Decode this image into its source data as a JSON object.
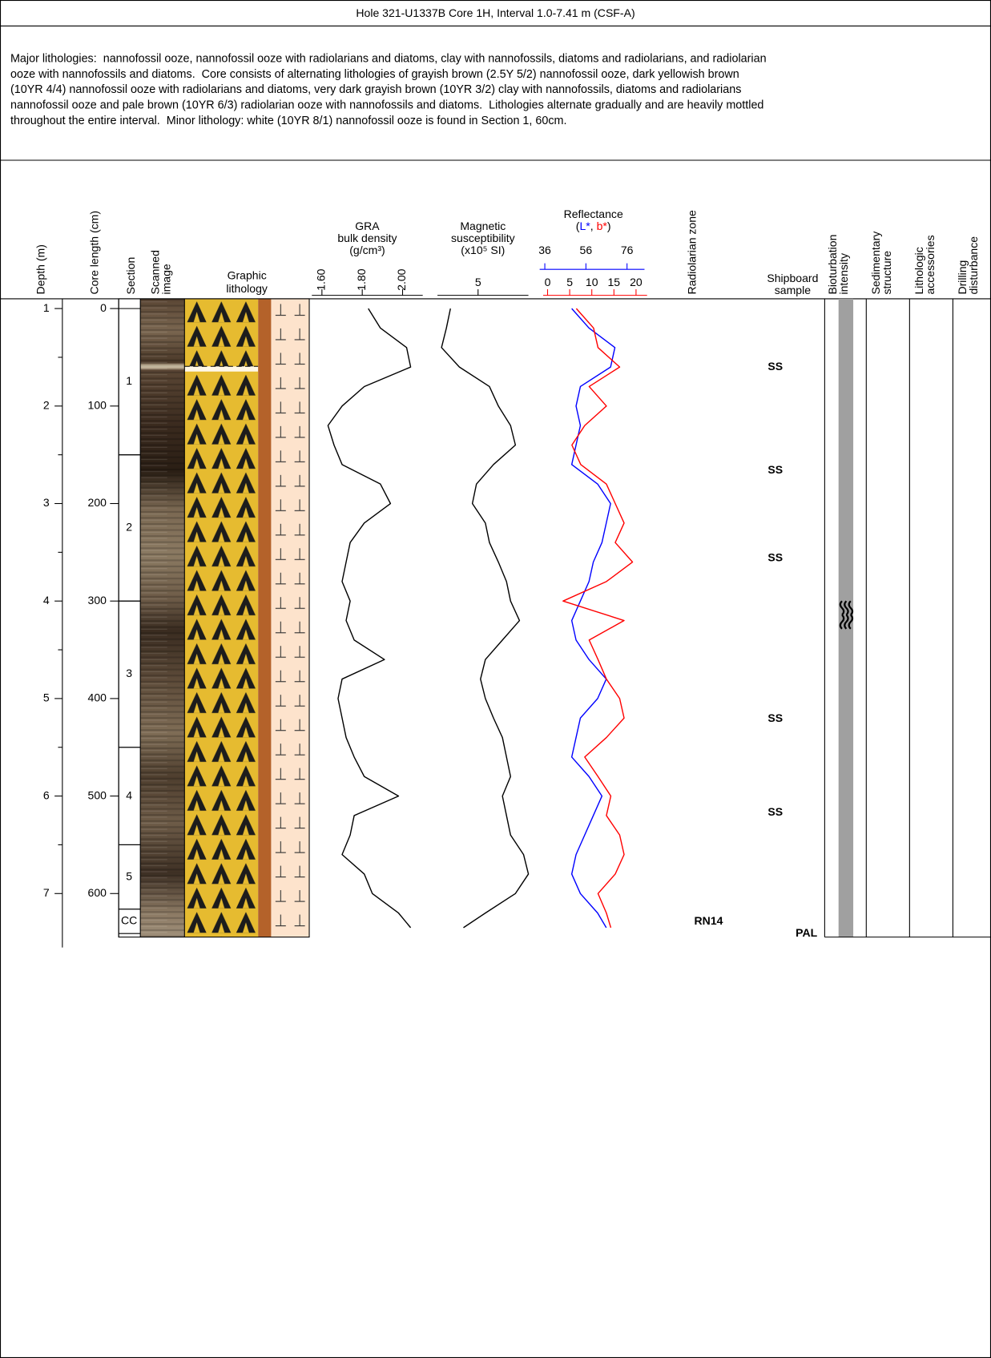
{
  "header": {
    "title": "Hole 321-U1337B Core 1H, Interval 1.0-7.41 m (CSF-A)",
    "description": [
      "Major lithologies:  nannofossil ooze, nannofossil ooze with radiolarians and diatoms, clay with nannofossils, diatoms and radiolarians, and radiolarian",
      "ooze with nannofossils and diatoms.  Core consists of alternating lithologies of grayish brown (2.5Y 5/2) nannofossil ooze, dark yellowish brown",
      "(10YR 4/4) nannofossil ooze with radiolarians and diatoms, very dark grayish brown (10YR 3/2) clay with nannofossils, diatoms and radiolarians",
      "nannofossil ooze and pale brown (10YR 6/3) radiolarian ooze with nannofossils and diatoms.  Lithologies alternate gradually and are heavily mottled",
      "throughout the entire interval.  Minor lithology: white (10YR 8/1) nannofossil ooze is found in Section 1, 60cm."
    ]
  },
  "columns": {
    "depth": "Depth (m)",
    "core_length": "Core length (cm)",
    "section": "Section",
    "scanned_image": [
      "Scanned",
      "image"
    ],
    "graphic_lithology": [
      "Graphic",
      "lithology"
    ],
    "radiolarian_zone": "Radiolarian zone",
    "shipboard_sample": [
      "Shipboard",
      "sample"
    ],
    "bioturbation": [
      "Bioturbation",
      "intensity"
    ],
    "sedimentary_structure": [
      "Sedimentary",
      "structure"
    ],
    "lithologic_accessories": [
      "Lithologic",
      "accessories"
    ],
    "drilling_disturbance": [
      "Drilling",
      "disturbance"
    ]
  },
  "depth_axis": {
    "ylim": [
      0.9,
      7.42
    ],
    "ticks": [
      1,
      2,
      3,
      4,
      5,
      6,
      7
    ],
    "minor_ticks": [
      1.5,
      2.5,
      3.5,
      4.5,
      5.5,
      6.5
    ]
  },
  "core_length_axis": {
    "lim": [
      -10,
      642
    ],
    "ticks": [
      0,
      100,
      200,
      300,
      400,
      500,
      600
    ]
  },
  "sections": [
    {
      "label": "1",
      "top": 0,
      "bottom": 150
    },
    {
      "label": "2",
      "top": 150,
      "bottom": 300
    },
    {
      "label": "3",
      "top": 300,
      "bottom": 450
    },
    {
      "label": "4",
      "top": 450,
      "bottom": 550
    },
    {
      "label": "5",
      "top": 550,
      "bottom": 616
    },
    {
      "label": "CC",
      "top": 616,
      "bottom": 641
    }
  ],
  "curve_depth": [
    1.0,
    1.2,
    1.4,
    1.6,
    1.8,
    2.0,
    2.2,
    2.4,
    2.6,
    2.8,
    3.0,
    3.2,
    3.4,
    3.6,
    3.8,
    4.0,
    4.2,
    4.4,
    4.6,
    4.8,
    5.0,
    5.2,
    5.4,
    5.6,
    5.8,
    6.0,
    6.2,
    6.4,
    6.6,
    6.8,
    7.0,
    7.2,
    7.35
  ],
  "chart_data": [
    {
      "type": "line",
      "title": [
        "GRA",
        "bulk density",
        "(g/cm³)"
      ],
      "xlim": [
        1.55,
        2.1
      ],
      "xticks": [
        {
          "value": 1.6,
          "label": "1.60"
        },
        {
          "value": 1.8,
          "label": "1.80"
        },
        {
          "value": 2.0,
          "label": "2.00"
        }
      ],
      "series": [
        {
          "color": "#000000",
          "values": [
            1.83,
            1.89,
            2.02,
            2.04,
            1.81,
            1.7,
            1.63,
            1.66,
            1.7,
            1.89,
            1.94,
            1.81,
            1.74,
            1.72,
            1.7,
            1.74,
            1.72,
            1.76,
            1.91,
            1.7,
            1.68,
            1.7,
            1.72,
            1.76,
            1.81,
            1.98,
            1.76,
            1.74,
            1.7,
            1.81,
            1.85,
            1.98,
            2.04
          ]
        }
      ]
    },
    {
      "type": "line",
      "title": [
        "Magnetic",
        "susceptibility",
        "(x10⁵ SI)"
      ],
      "xlim": [
        0,
        11.2
      ],
      "xticks": [
        5
      ],
      "series": [
        {
          "color": "#000000",
          "values": [
            1.6,
            1.1,
            0.5,
            2.7,
            6.4,
            7.5,
            9.0,
            9.6,
            6.9,
            4.8,
            4.3,
            5.9,
            6.4,
            7.5,
            8.5,
            9.0,
            10.1,
            8.0,
            5.9,
            5.3,
            5.9,
            6.9,
            8.0,
            8.5,
            9.0,
            8.0,
            8.5,
            9.0,
            10.6,
            11.2,
            9.6,
            5.9,
            3.2
          ]
        }
      ]
    },
    {
      "type": "line",
      "title": "Reflectance",
      "label_parts": [
        "(",
        ", ",
        ")"
      ],
      "xlim": [
        33.5,
        84.5
      ],
      "xticks": [
        36,
        56,
        76
      ],
      "x2lim": [
        -1,
        22.5
      ],
      "x2ticks": [
        0,
        5,
        10,
        15,
        20
      ],
      "series": [
        {
          "name": "L*",
          "color": "#0000ff",
          "axis": "x",
          "values": [
            49.1,
            57.5,
            70.1,
            68.0,
            53.3,
            51.2,
            53.3,
            51.2,
            49.1,
            61.7,
            68.0,
            65.9,
            63.8,
            59.6,
            57.5,
            53.3,
            49.1,
            51.2,
            57.5,
            65.9,
            61.7,
            53.3,
            51.2,
            49.1,
            57.5,
            63.8,
            59.6,
            55.4,
            51.2,
            49.1,
            53.3,
            61.7,
            65.9
          ]
        },
        {
          "name": "b*",
          "color": "#ff0000",
          "axis": "x2",
          "values": [
            6.5,
            10.4,
            11.4,
            16.3,
            9.4,
            13.3,
            8.4,
            5.5,
            7.5,
            13.3,
            15.3,
            17.3,
            15.3,
            19.2,
            13.3,
            3.5,
            17.3,
            9.4,
            11.4,
            13.3,
            16.3,
            17.3,
            13.3,
            8.4,
            11.4,
            14.3,
            13.3,
            16.3,
            17.3,
            15.3,
            11.4,
            13.3,
            14.3
          ]
        }
      ]
    }
  ],
  "radiolarian_zones": [
    {
      "label": "RN14"
    }
  ],
  "shipboard_samples": [
    {
      "label": "SS",
      "depth": 1.6
    },
    {
      "label": "SS",
      "depth": 2.66
    },
    {
      "label": "SS",
      "depth": 3.56
    },
    {
      "label": "SS",
      "depth": 5.21
    },
    {
      "label": "SS",
      "depth": 6.17
    }
  ],
  "paleontology_samples": [
    {
      "label": "PAL",
      "depth": 7.41
    }
  ]
}
